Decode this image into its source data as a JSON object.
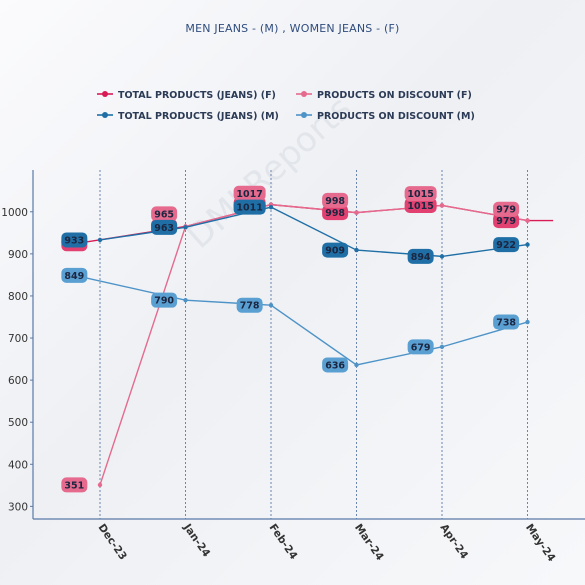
{
  "chart_data": {
    "type": "line",
    "title": "MEN JEANS - (M) , WOMEN JEANS - (F)",
    "categories": [
      "Dec-23",
      "Jan-24",
      "Feb-24",
      "Mar-24",
      "Apr-24",
      "May-24"
    ],
    "x_labeled_index": [
      0,
      1,
      2,
      3,
      4,
      5
    ],
    "yticks": [
      300,
      400,
      500,
      600,
      700,
      800,
      900,
      1000
    ],
    "ylim": [
      270,
      1085
    ],
    "grid": false,
    "legend_position": "top",
    "series": [
      {
        "name": "TOTAL PRODUCTS (JEANS) (F)",
        "color": "#d81b55",
        "label_color": "#e14070",
        "points": [
          [
            -0.3,
            924
          ],
          [
            1,
            965
          ],
          [
            2,
            1017
          ],
          [
            3,
            998
          ],
          [
            4,
            1015
          ],
          [
            5,
            979
          ]
        ],
        "trail": [
          [
            5,
            979
          ],
          [
            5.3,
            979
          ]
        ],
        "labels": [
          [
            -0.3,
            924,
            "924"
          ],
          [
            0.75,
            965,
            "965"
          ],
          [
            1.75,
            1017,
            "1017"
          ],
          [
            2.75,
            998,
            "998"
          ],
          [
            3.75,
            1015,
            "1015"
          ],
          [
            4.75,
            979,
            "979"
          ]
        ]
      },
      {
        "name": "PRODUCTS ON DISCOUNT (F)",
        "color": "#e56a8e",
        "label_color": "#e56a8e",
        "points": [
          [
            0,
            351
          ],
          [
            1,
            965
          ],
          [
            2,
            1017
          ],
          [
            3,
            998
          ],
          [
            4,
            1015
          ],
          [
            5,
            979
          ]
        ],
        "labels": [
          [
            -0.3,
            351,
            "351"
          ],
          [
            0.75,
            995,
            "965"
          ],
          [
            1.75,
            1044,
            "1017"
          ],
          [
            2.75,
            1027,
            "998"
          ],
          [
            3.75,
            1043,
            "1015"
          ],
          [
            4.75,
            1006,
            "979"
          ]
        ]
      },
      {
        "name": "TOTAL PRODUCTS (JEANS) (M)",
        "color": "#1f6fa6",
        "label_color": "#1f6fa6",
        "points": [
          [
            0,
            933
          ],
          [
            1,
            963
          ],
          [
            2,
            1011
          ],
          [
            3,
            909
          ],
          [
            4,
            894
          ],
          [
            5,
            922
          ]
        ],
        "labels": [
          [
            -0.3,
            933,
            "933"
          ],
          [
            0.75,
            963,
            "963"
          ],
          [
            1.75,
            1011,
            "1011"
          ],
          [
            2.75,
            909,
            "909"
          ],
          [
            3.75,
            894,
            "894"
          ],
          [
            4.75,
            922,
            "922"
          ]
        ]
      },
      {
        "name": "PRODUCTS ON DISCOUNT (M)",
        "color": "#4d93c7",
        "label_color": "#5a9fd2",
        "points": [
          [
            -0.3,
            849
          ],
          [
            1,
            790
          ],
          [
            2,
            778
          ],
          [
            3,
            636
          ],
          [
            4,
            679
          ],
          [
            5,
            738
          ]
        ],
        "labels": [
          [
            -0.3,
            849,
            "849"
          ],
          [
            0.75,
            790,
            "790"
          ],
          [
            1.75,
            778,
            "778"
          ],
          [
            2.75,
            636,
            "636"
          ],
          [
            3.75,
            679,
            "679"
          ],
          [
            4.75,
            738,
            "738"
          ]
        ]
      }
    ]
  },
  "legend": [
    {
      "label": "TOTAL PRODUCTS (JEANS) (F)",
      "color": "#d81b55"
    },
    {
      "label": "PRODUCTS ON DISCOUNT (F)",
      "color": "#e56a8e"
    },
    {
      "label": "TOTAL PRODUCTS (JEANS) (M)",
      "color": "#1f6fa6"
    },
    {
      "label": "PRODUCTS ON DISCOUNT (M)",
      "color": "#4d93c7"
    }
  ],
  "watermark": "DMI Reports"
}
